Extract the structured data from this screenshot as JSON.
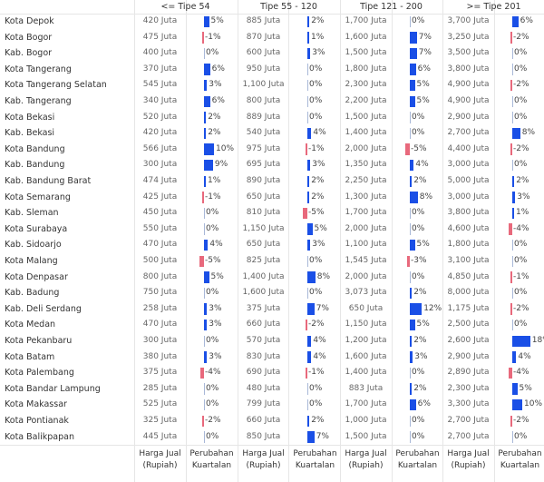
{
  "groups": [
    "<= Tipe 54",
    "Tipe 55 - 120",
    "Tipe 121 - 200",
    ">= Tipe 201"
  ],
  "footer": {
    "price_label_1": "Harga Jual",
    "price_label_2": "(Rupiah)",
    "change_label_1": "Perubahan",
    "change_label_2": "Kuartalan"
  },
  "colors": {
    "positive": "#1a4fe6",
    "negative": "#e8697c",
    "zero": "#a8b8d8"
  },
  "rows": [
    {
      "name": "Kota Depok",
      "cells": [
        [
          "420 Juta",
          5
        ],
        [
          "885 Juta",
          2
        ],
        [
          "1,700 Juta",
          0
        ],
        [
          "3,700 Juta",
          6
        ]
      ]
    },
    {
      "name": "Kota Bogor",
      "cells": [
        [
          "475 Juta",
          -1
        ],
        [
          "870 Juta",
          1
        ],
        [
          "1,600 Juta",
          7
        ],
        [
          "3,250 Juta",
          -2
        ]
      ]
    },
    {
      "name": "Kab. Bogor",
      "cells": [
        [
          "400 Juta",
          0
        ],
        [
          "600 Juta",
          3
        ],
        [
          "1,500 Juta",
          7
        ],
        [
          "3,500 Juta",
          0
        ]
      ]
    },
    {
      "name": "Kota Tangerang",
      "cells": [
        [
          "370 Juta",
          6
        ],
        [
          "950 Juta",
          0
        ],
        [
          "1,800 Juta",
          6
        ],
        [
          "3,800 Juta",
          0
        ]
      ]
    },
    {
      "name": "Kota Tangerang Selatan",
      "cells": [
        [
          "545 Juta",
          3
        ],
        [
          "1,100 Juta",
          0
        ],
        [
          "2,300 Juta",
          5
        ],
        [
          "4,900 Juta",
          -2
        ]
      ]
    },
    {
      "name": "Kab. Tangerang",
      "cells": [
        [
          "340 Juta",
          6
        ],
        [
          "800 Juta",
          0
        ],
        [
          "2,200 Juta",
          5
        ],
        [
          "4,900 Juta",
          0
        ]
      ]
    },
    {
      "name": "Kota Bekasi",
      "cells": [
        [
          "520 Juta",
          2
        ],
        [
          "889 Juta",
          0
        ],
        [
          "1,500 Juta",
          0
        ],
        [
          "2,900 Juta",
          0
        ]
      ]
    },
    {
      "name": "Kab. Bekasi",
      "cells": [
        [
          "420 Juta",
          2
        ],
        [
          "540 Juta",
          4
        ],
        [
          "1,400 Juta",
          0
        ],
        [
          "2,700 Juta",
          8
        ]
      ]
    },
    {
      "name": "Kota Bandung",
      "cells": [
        [
          "566 Juta",
          10
        ],
        [
          "975 Juta",
          -1
        ],
        [
          "2,000 Juta",
          -5
        ],
        [
          "4,400 Juta",
          -2
        ]
      ]
    },
    {
      "name": "Kab. Bandung",
      "cells": [
        [
          "300 Juta",
          9
        ],
        [
          "695 Juta",
          3
        ],
        [
          "1,350 Juta",
          4
        ],
        [
          "3,000 Juta",
          0
        ]
      ]
    },
    {
      "name": "Kab. Bandung Barat",
      "cells": [
        [
          "474 Juta",
          1
        ],
        [
          "890 Juta",
          2
        ],
        [
          "2,250 Juta",
          2
        ],
        [
          "5,000 Juta",
          2
        ]
      ]
    },
    {
      "name": "Kota Semarang",
      "cells": [
        [
          "425 Juta",
          -1
        ],
        [
          "650 Juta",
          2
        ],
        [
          "1,300 Juta",
          8
        ],
        [
          "3,000 Juta",
          3
        ]
      ]
    },
    {
      "name": "Kab. Sleman",
      "cells": [
        [
          "450 Juta",
          0
        ],
        [
          "810 Juta",
          -5
        ],
        [
          "1,700 Juta",
          0
        ],
        [
          "3,800 Juta",
          1
        ]
      ]
    },
    {
      "name": "Kota Surabaya",
      "cells": [
        [
          "550 Juta",
          0
        ],
        [
          "1,150 Juta",
          5
        ],
        [
          "2,000 Juta",
          0
        ],
        [
          "4,600 Juta",
          -4
        ]
      ]
    },
    {
      "name": "Kab. Sidoarjo",
      "cells": [
        [
          "470 Juta",
          4
        ],
        [
          "650 Juta",
          3
        ],
        [
          "1,100 Juta",
          5
        ],
        [
          "1,800 Juta",
          0
        ]
      ]
    },
    {
      "name": "Kota Malang",
      "cells": [
        [
          "500 Juta",
          -5
        ],
        [
          "825 Juta",
          0
        ],
        [
          "1,545 Juta",
          -3
        ],
        [
          "3,100 Juta",
          0
        ]
      ]
    },
    {
      "name": "Kota Denpasar",
      "cells": [
        [
          "800 Juta",
          5
        ],
        [
          "1,400 Juta",
          8
        ],
        [
          "2,000 Juta",
          0
        ],
        [
          "4,850 Juta",
          -1
        ]
      ]
    },
    {
      "name": "Kab. Badung",
      "cells": [
        [
          "750 Juta",
          0
        ],
        [
          "1,600 Juta",
          0
        ],
        [
          "3,073 Juta",
          2
        ],
        [
          "8,000 Juta",
          0
        ]
      ]
    },
    {
      "name": "Kab. Deli Serdang",
      "cells": [
        [
          "258 Juta",
          3
        ],
        [
          "375 Juta",
          7
        ],
        [
          "650 Juta",
          12
        ],
        [
          "1,175 Juta",
          -2
        ]
      ]
    },
    {
      "name": "Kota Medan",
      "cells": [
        [
          "470 Juta",
          3
        ],
        [
          "660 Juta",
          -2
        ],
        [
          "1,150 Juta",
          5
        ],
        [
          "2,500 Juta",
          0
        ]
      ]
    },
    {
      "name": "Kota Pekanbaru",
      "cells": [
        [
          "300 Juta",
          0
        ],
        [
          "570 Juta",
          4
        ],
        [
          "1,200 Juta",
          2
        ],
        [
          "2,600 Juta",
          18
        ]
      ]
    },
    {
      "name": "Kota Batam",
      "cells": [
        [
          "380 Juta",
          3
        ],
        [
          "830 Juta",
          4
        ],
        [
          "1,600 Juta",
          3
        ],
        [
          "2,900 Juta",
          4
        ]
      ]
    },
    {
      "name": "Kota Palembang",
      "cells": [
        [
          "375 Juta",
          -4
        ],
        [
          "690 Juta",
          -1
        ],
        [
          "1,400 Juta",
          0
        ],
        [
          "2,890 Juta",
          -4
        ]
      ]
    },
    {
      "name": "Kota Bandar Lampung",
      "cells": [
        [
          "285 Juta",
          0
        ],
        [
          "480 Juta",
          0
        ],
        [
          "883 Juta",
          2
        ],
        [
          "2,300 Juta",
          5
        ]
      ]
    },
    {
      "name": "Kota Makassar",
      "cells": [
        [
          "525 Juta",
          0
        ],
        [
          "799 Juta",
          0
        ],
        [
          "1,700 Juta",
          6
        ],
        [
          "3,300 Juta",
          10
        ]
      ]
    },
    {
      "name": "Kota Pontianak",
      "cells": [
        [
          "325 Juta",
          -2
        ],
        [
          "660 Juta",
          2
        ],
        [
          "1,000 Juta",
          0
        ],
        [
          "2,700 Juta",
          -2
        ]
      ]
    },
    {
      "name": "Kota Balikpapan",
      "cells": [
        [
          "445 Juta",
          0
        ],
        [
          "850 Juta",
          7
        ],
        [
          "1,500 Juta",
          0
        ],
        [
          "2,700 Juta",
          0
        ]
      ]
    }
  ]
}
